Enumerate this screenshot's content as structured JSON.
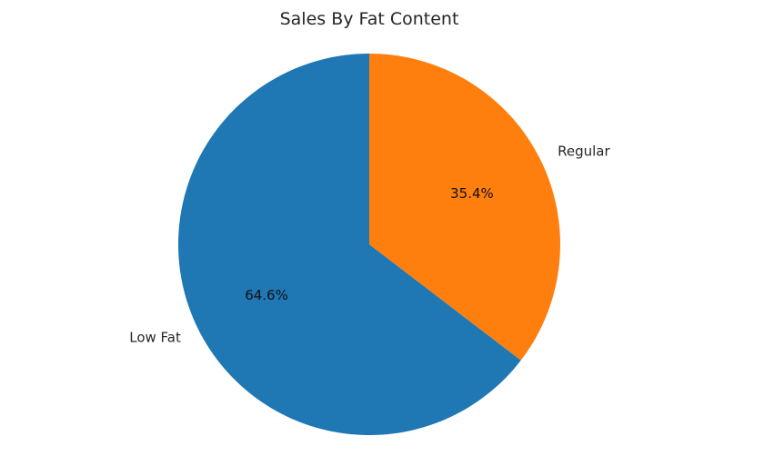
{
  "chart_data": {
    "type": "pie",
    "title": "Sales By Fat Content",
    "categories": [
      "Low Fat",
      "Regular"
    ],
    "values": [
      64.6,
      35.4
    ],
    "value_labels": [
      "64.6%",
      "35.4%"
    ],
    "colors": [
      "#1f77b4",
      "#ff7f0e"
    ],
    "start_angle": 90,
    "direction": "counterclockwise",
    "legend": "none"
  }
}
